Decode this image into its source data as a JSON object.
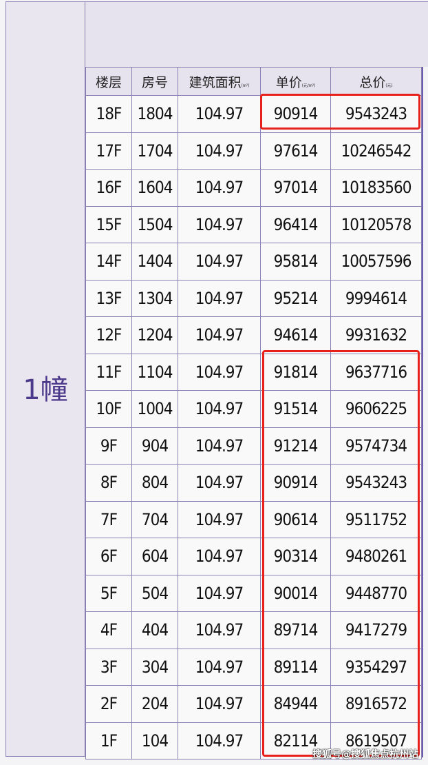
{
  "building_label": "1幢",
  "headers": [
    {
      "label": "楼层",
      "unit": ""
    },
    {
      "label": "房号",
      "unit": ""
    },
    {
      "label": "建筑面积",
      "unit": "(m²)"
    },
    {
      "label": "单价",
      "unit": "(元/m²)"
    },
    {
      "label": "总价",
      "unit": "(元)"
    }
  ],
  "rows": [
    [
      "18F",
      "1804",
      "104.97",
      "90914",
      "9543243"
    ],
    [
      "17F",
      "1704",
      "104.97",
      "97614",
      "10246542"
    ],
    [
      "16F",
      "1604",
      "104.97",
      "97014",
      "10183560"
    ],
    [
      "15F",
      "1504",
      "104.97",
      "96414",
      "10120578"
    ],
    [
      "14F",
      "1404",
      "104.97",
      "95814",
      "10057596"
    ],
    [
      "13F",
      "1304",
      "104.97",
      "95214",
      "9994614"
    ],
    [
      "12F",
      "1204",
      "104.97",
      "94614",
      "9931632"
    ],
    [
      "11F",
      "1104",
      "104.97",
      "91814",
      "9637716"
    ],
    [
      "10F",
      "1004",
      "104.97",
      "91514",
      "9606225"
    ],
    [
      "9F",
      "904",
      "104.97",
      "91214",
      "9574734"
    ],
    [
      "8F",
      "804",
      "104.97",
      "90914",
      "9543243"
    ],
    [
      "7F",
      "704",
      "104.97",
      "90614",
      "9511752"
    ],
    [
      "6F",
      "604",
      "104.97",
      "90314",
      "9480261"
    ],
    [
      "5F",
      "504",
      "104.97",
      "90014",
      "9448770"
    ],
    [
      "4F",
      "404",
      "104.97",
      "89714",
      "9417279"
    ],
    [
      "3F",
      "304",
      "104.97",
      "89114",
      "9354297"
    ],
    [
      "2F",
      "204",
      "104.97",
      "84944",
      "8916572"
    ],
    [
      "1F",
      "104",
      "104.97",
      "82114",
      "8619507"
    ]
  ],
  "highlight_color": "#e8201c",
  "watermark": "搜狐号@搜狐焦点杭州站"
}
